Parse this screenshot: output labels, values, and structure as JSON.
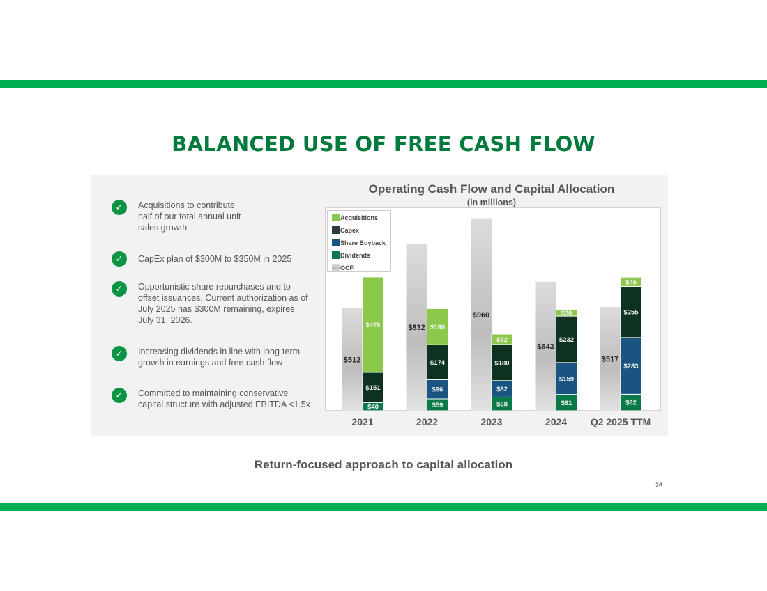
{
  "slide": {
    "title": "BALANCED USE OF FREE CASH FLOW",
    "footer": "Return-focused approach to capital allocation",
    "page_number": "26",
    "accent_color": "#00ad4f",
    "title_color": "#007a3d"
  },
  "bullets": [
    {
      "icon": "check-circle-icon",
      "text": "Acquisitions to contribute half of our total annual unit sales growth"
    },
    {
      "icon": "check-circle-icon",
      "text": "CapEx plan of $300M to $350M in 2025"
    },
    {
      "icon": "check-circle-icon",
      "text": "Opportunistic share repurchases and to offset issuances. Current authorization as of July 2025 has $300M remaining, expires July 31, 2026."
    },
    {
      "icon": "check-circle-icon",
      "text": "Increasing dividends in line with long-term growth in earnings and free cash flow"
    },
    {
      "icon": "check-circle-icon",
      "text": "Committed to maintaining conservative capital structure with adjusted EBITDA <1.5x"
    }
  ],
  "chart_data": {
    "type": "bar",
    "title": "Operating Cash Flow and Capital Allocation",
    "subtitle": "(in millions)",
    "categories": [
      "2021",
      "2022",
      "2023",
      "2024",
      "Q2 2025 TTM"
    ],
    "ylim": [
      0,
      1000
    ],
    "grid": false,
    "legend_placement": "top-left",
    "ocf": {
      "name": "OCF",
      "color": "#c8c8c8",
      "values": [
        512,
        832,
        960,
        643,
        517
      ],
      "labels": [
        "$512",
        "$832",
        "$960",
        "$643",
        "$517"
      ]
    },
    "stacked_series": [
      {
        "name": "Dividends",
        "color": "#0a7a4a",
        "values": [
          40,
          59,
          68,
          81,
          82
        ],
        "labels": [
          "$40",
          "$59",
          "$68",
          "$81",
          "$82"
        ]
      },
      {
        "name": "Share Buyback",
        "color": "#1a5582",
        "values": [
          0,
          96,
          82,
          159,
          283
        ],
        "labels": [
          "",
          "$96",
          "$82",
          "$159",
          "$283"
        ]
      },
      {
        "name": "Capex",
        "color": "#0d3320",
        "values": [
          151,
          174,
          180,
          232,
          255
        ],
        "labels": [
          "$151",
          "$174",
          "$180",
          "$232",
          "$255"
        ]
      },
      {
        "name": "Acquisitions",
        "color": "#8cc84b",
        "values": [
          476,
          180,
          52,
          30,
          46
        ],
        "labels": [
          "$476",
          "$180",
          "$52",
          "$30",
          "$46"
        ]
      }
    ],
    "legend": [
      "Acquisitions",
      "Capex",
      "Share Buyback",
      "Dividends",
      "OCF"
    ]
  }
}
